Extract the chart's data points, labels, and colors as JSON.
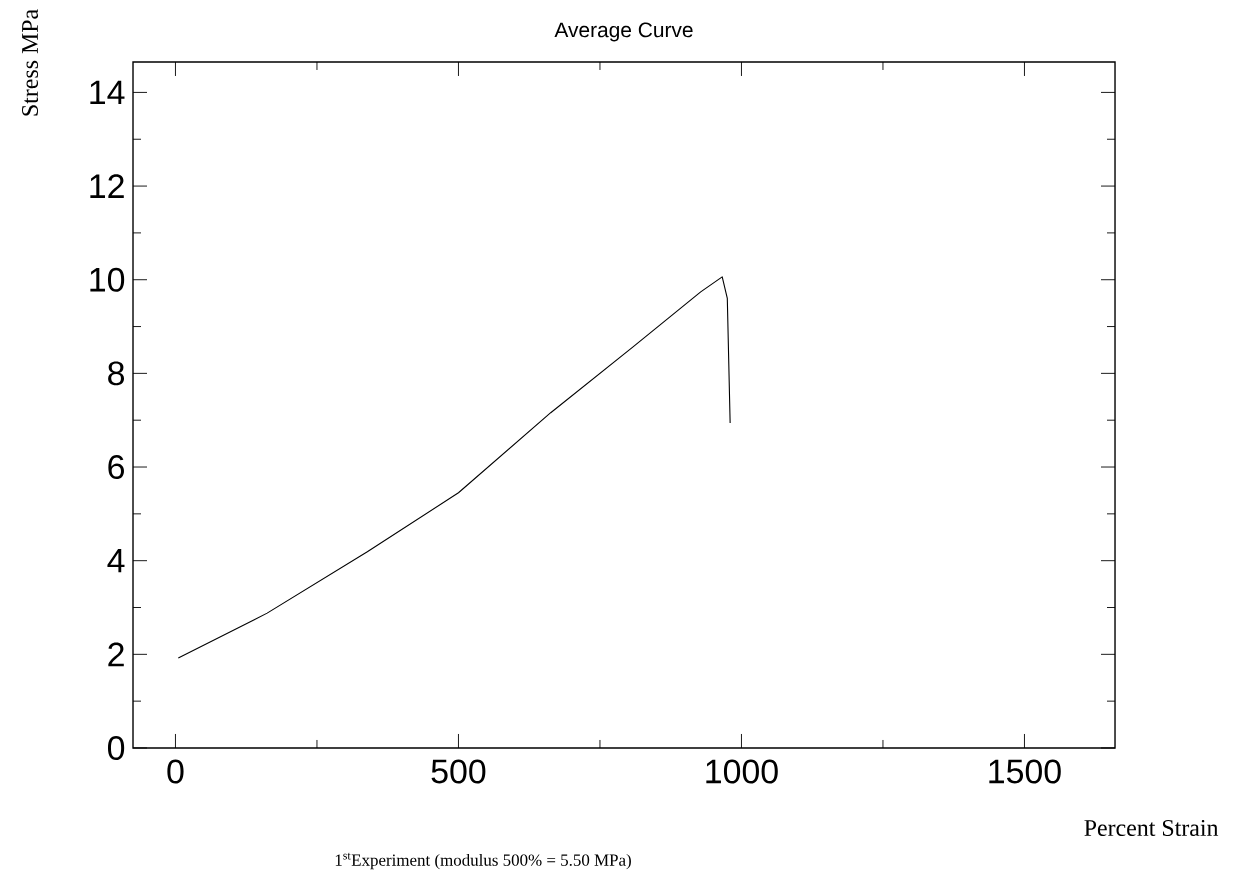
{
  "chart_data": {
    "type": "line",
    "title": "Average Curve",
    "xlabel": "Percent Strain",
    "ylabel": "Stress MPa",
    "annotations": [
      "1$^{st}$Experiment (modulus 500% = 5.50 MPa)"
    ],
    "series": [
      {
        "color": "#000000",
        "x": [
          5,
          162,
          339,
          500,
          663,
          809,
          928,
          966,
          975,
          980
        ],
        "values": [
          1.92,
          2.88,
          4.19,
          5.45,
          7.16,
          8.57,
          9.74,
          10.06,
          9.6,
          6.94
        ]
      }
    ],
    "xlim": [
      -75,
      1660
    ],
    "ylim": [
      0,
      14.65
    ],
    "xticks": [
      0,
      500,
      1000,
      1500
    ],
    "yticks": [
      0,
      2,
      4,
      6,
      8,
      10,
      12,
      14
    ]
  }
}
